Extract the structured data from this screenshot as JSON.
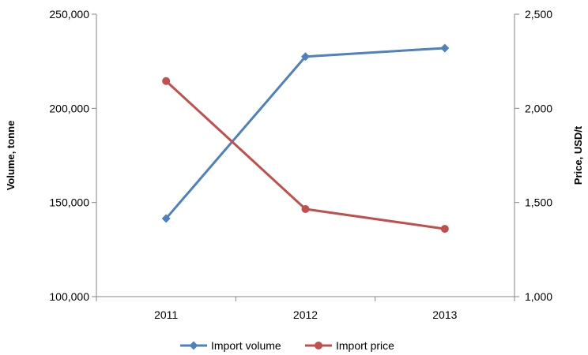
{
  "chart_data": {
    "type": "line",
    "categories": [
      "2011",
      "2012",
      "2013"
    ],
    "series": [
      {
        "name": "Import volume",
        "axis": "left",
        "color": "#4f81bd",
        "marker": "diamond",
        "values": [
          141500,
          227500,
          232000
        ]
      },
      {
        "name": "Import price",
        "axis": "right",
        "color": "#c0504d",
        "marker": "circle",
        "values": [
          2145,
          1465,
          1360
        ]
      }
    ],
    "left_axis": {
      "label": "Volume,  tonne",
      "range": [
        100000,
        250000
      ],
      "ticks": [
        100000,
        150000,
        200000,
        250000
      ],
      "tick_labels": [
        "100,000",
        "150,000",
        "200,000",
        "250,000"
      ]
    },
    "right_axis": {
      "label": "Price,  USD/t",
      "range": [
        1000,
        2500
      ],
      "ticks": [
        1000,
        1500,
        2000,
        2500
      ],
      "tick_labels": [
        "1,000",
        "1,500",
        "2,000",
        "2,500"
      ]
    },
    "grid": false,
    "legend_position": "bottom"
  }
}
